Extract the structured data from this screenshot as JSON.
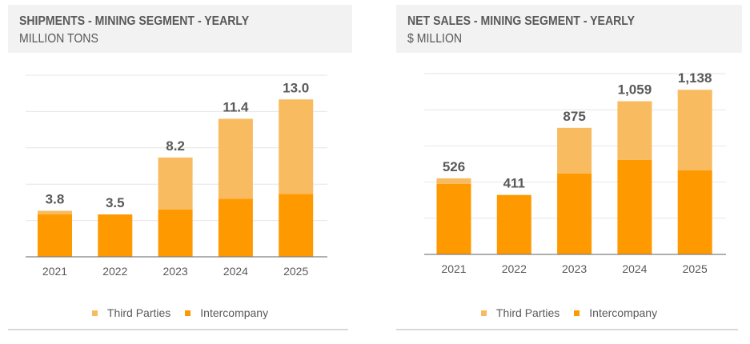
{
  "colors": {
    "third_parties": "#f9bb5f",
    "intercompany": "#ff9900",
    "grid": "#e6e6e6",
    "axis": "#808080"
  },
  "chart_data": [
    {
      "type": "bar",
      "stacked": true,
      "title": "SHIPMENTS - MINING SEGMENT - YEARLY",
      "subtitle": "MILLION TONS",
      "xlabel": "",
      "ylabel": "",
      "categories": [
        "2021",
        "2022",
        "2023",
        "2024",
        "2025"
      ],
      "series": [
        {
          "name": "Intercompany",
          "values": [
            3.5,
            3.5,
            3.9,
            4.8,
            5.2
          ]
        },
        {
          "name": "Third Parties",
          "values": [
            0.3,
            0.0,
            4.3,
            6.6,
            7.8
          ]
        }
      ],
      "totals": [
        3.8,
        3.5,
        8.2,
        11.4,
        13.0
      ],
      "total_labels": [
        "3.8",
        "3.5",
        "8.2",
        "11.4",
        "13.0"
      ],
      "ylim": [
        0,
        15
      ],
      "grid_step": 3,
      "grid": true,
      "y_tick_labels_shown": false,
      "legend": [
        "Third Parties",
        "Intercompany"
      ],
      "legend_position": "bottom"
    },
    {
      "type": "bar",
      "stacked": true,
      "title": "NET SALES - MINING SEGMENT - YEARLY",
      "subtitle": "$ MILLION",
      "xlabel": "",
      "ylabel": "",
      "categories": [
        "2021",
        "2022",
        "2023",
        "2024",
        "2025"
      ],
      "series": [
        {
          "name": "Intercompany",
          "values": [
            487,
            411,
            559,
            653,
            581
          ]
        },
        {
          "name": "Third Parties",
          "values": [
            39,
            0,
            316,
            406,
            557
          ]
        }
      ],
      "totals": [
        526,
        411,
        875,
        1059,
        1138
      ],
      "total_labels": [
        "526",
        "411",
        "875",
        "1,059",
        "1,138"
      ],
      "ylim": [
        0,
        1250
      ],
      "grid_step": 250,
      "grid": true,
      "y_tick_labels_shown": false,
      "legend": [
        "Third Parties",
        "Intercompany"
      ],
      "legend_position": "bottom"
    }
  ]
}
